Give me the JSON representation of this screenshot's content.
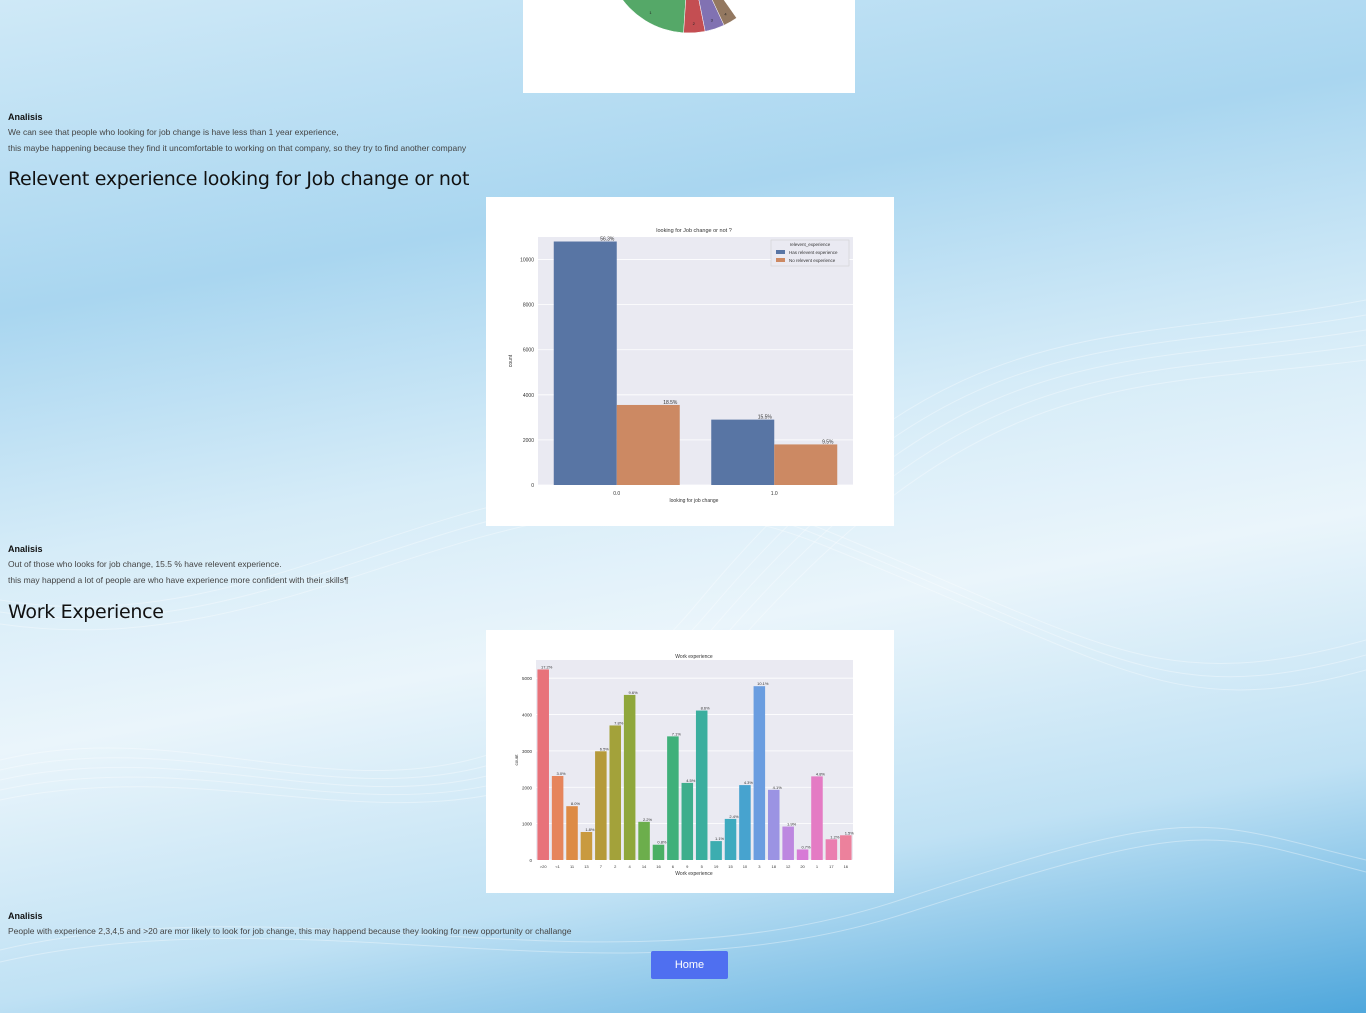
{
  "colors": {
    "background_accent": "#4fa7dc",
    "button": "#4f6ff0"
  },
  "section1": {
    "analysis_title": "Analisis",
    "analysis_line1": "We can see that people who looking for job change is have less than 1 year experience,",
    "analysis_line2": "this maybe happening because they find it uncomfortable to working on that company, so they try to find another company"
  },
  "section2": {
    "heading": "Relevent experience looking for Job change or not",
    "analysis_title": "Analisis",
    "analysis_line1": "Out of those who looks for job change, 15.5 % have relevent experience.",
    "analysis_line2": "this may happend a lot of people are who have experience more confident with their skills¶"
  },
  "section3": {
    "heading": "Work Experience",
    "analysis_title": "Analisis",
    "analysis_line1": "People with experience 2,3,4,5 and >20 are mor likely to look for job change, this may happend because they looking for new opportunity or challange"
  },
  "home_button": {
    "label": "Home"
  },
  "chart_data": [
    {
      "type": "pie",
      "slices": [
        {
          "label": "1",
          "value": 45,
          "color": "#55a868"
        },
        {
          "label": "2",
          "value": 12,
          "color": "#c44e52"
        },
        {
          "label": "3",
          "value": 11,
          "color": "#8172b2"
        },
        {
          "label": "4",
          "value": 8,
          "color": "#937860"
        }
      ]
    },
    {
      "type": "bar",
      "title": "looking for Job change or not ?",
      "xlabel": "looking for job change",
      "ylabel": "count",
      "categories": [
        "0.0",
        "1.0"
      ],
      "ylim": [
        0,
        11000
      ],
      "yticks": [
        0,
        2000,
        4000,
        6000,
        8000,
        10000
      ],
      "legend_title": "relevent_experience",
      "legend_position": "top-right",
      "series": [
        {
          "name": "Has relevent experience",
          "color": "#5875a4",
          "values": [
            10800,
            2900
          ],
          "labels": [
            "56.3%",
            "15.5%"
          ]
        },
        {
          "name": "No relevent experience",
          "color": "#cc8963",
          "values": [
            3550,
            1800
          ],
          "labels": [
            "18.5%",
            "9.5%"
          ]
        }
      ]
    },
    {
      "type": "bar",
      "title": "Work experience",
      "xlabel": "Work experience",
      "ylabel": "count",
      "ylim": [
        0,
        5500
      ],
      "yticks": [
        0,
        1000,
        2000,
        3000,
        4000,
        5000
      ],
      "categories": [
        ">20",
        "<1",
        "11",
        "13",
        "7",
        "2",
        "4",
        "14",
        "16",
        "6",
        "9",
        "5",
        "19",
        "15",
        "10",
        "3",
        "18",
        "12",
        "20",
        "1",
        "17",
        "16"
      ],
      "values": [
        5240,
        2310,
        1480,
        770,
        2990,
        3700,
        4540,
        1050,
        420,
        3400,
        2120,
        4110,
        520,
        1130,
        2060,
        4780,
        1930,
        920,
        290,
        2300,
        570,
        680
      ],
      "labels": [
        "17.2%",
        "3.0%",
        "8.0%",
        "1.8%",
        "6.5%",
        "7.8%",
        "9.6%",
        "2.2%",
        "0.8%",
        "7.1%",
        "4.5%",
        "8.6%",
        "1.1%",
        "2.4%",
        "4.3%",
        "10.1%",
        "4.1%",
        "1.9%",
        "0.7%",
        "4.8%",
        "1.2%",
        "1.5%"
      ],
      "colors": [
        "#e8727a",
        "#e6855c",
        "#dd8b45",
        "#c99a3f",
        "#b59a3a",
        "#a3a23a",
        "#8fa73b",
        "#6cae4c",
        "#4aaf64",
        "#3fb07a",
        "#3eae8c",
        "#3aae9e",
        "#3cadb0",
        "#3eaabf",
        "#47a3cf",
        "#6a9de0",
        "#9b93e3",
        "#bd87e0",
        "#d77bd6",
        "#e47bc4",
        "#ea7eb0",
        "#ec819c"
      ]
    }
  ]
}
